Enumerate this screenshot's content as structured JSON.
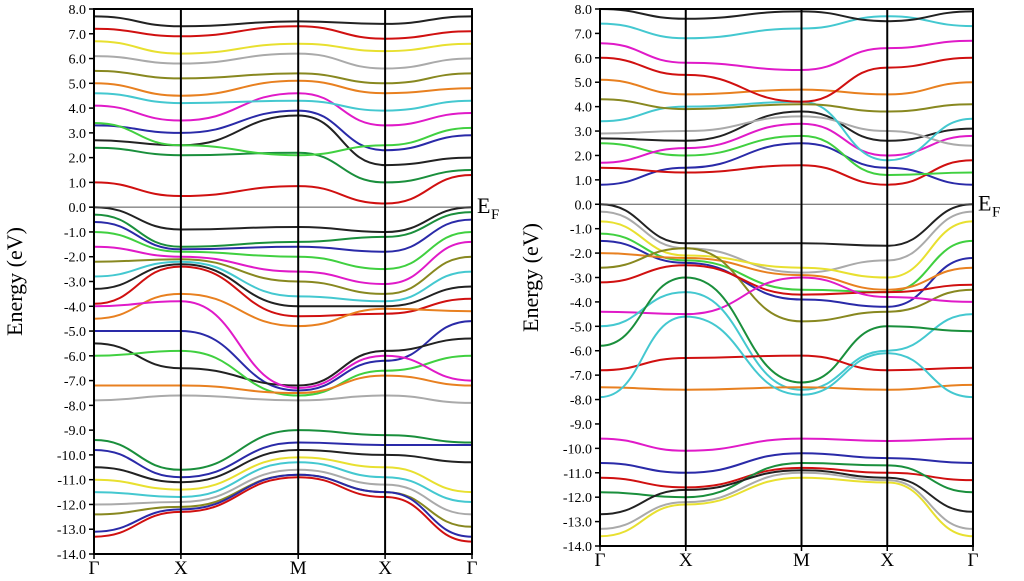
{
  "chart_data": [
    {
      "type": "line",
      "ylabel": "Energy (eV)",
      "ylim": [
        -14.0,
        8.0
      ],
      "y_ticks": [
        "8.0",
        "7.0",
        "6.0",
        "5.0",
        "4.0",
        "3.0",
        "2.0",
        "1.0",
        "0.0",
        "-1.0",
        "-2.0",
        "-3.0",
        "-4.0",
        "-5.0",
        "-6.0",
        "-7.0",
        "-8.0",
        "-9.0",
        "-10.0",
        "-11.0",
        "-12.0",
        "-13.0",
        "-14.0"
      ],
      "k_points": [
        "Γ",
        "X",
        "M",
        "X",
        "Γ"
      ],
      "k_positions": [
        0,
        1,
        2.35,
        3.35,
        4.35
      ],
      "fermi_label": "E",
      "fermi_subscript": "F",
      "fermi_level": 0.0,
      "grid": false,
      "series": [
        {
          "color": "#d01010",
          "values": [
            1.0,
            0.45,
            0.85,
            0.15,
            1.3
          ]
        },
        {
          "color": "#1a8f3c",
          "values": [
            2.4,
            2.1,
            2.2,
            1.0,
            1.5
          ]
        },
        {
          "color": "#222222",
          "values": [
            2.7,
            2.5,
            3.7,
            1.7,
            2.0
          ]
        },
        {
          "color": "#2a2aa8",
          "values": [
            3.3,
            3.0,
            3.9,
            2.3,
            2.9
          ]
        },
        {
          "color": "#40d040",
          "values": [
            3.4,
            2.5,
            2.1,
            2.5,
            3.2
          ]
        },
        {
          "color": "#e01ac8",
          "values": [
            4.1,
            3.5,
            4.6,
            3.3,
            3.8
          ]
        },
        {
          "color": "#44c8d0",
          "values": [
            4.6,
            4.2,
            4.3,
            3.9,
            4.3
          ]
        },
        {
          "color": "#e88020",
          "values": [
            5.0,
            4.5,
            5.1,
            4.6,
            4.8
          ]
        },
        {
          "color": "#888820",
          "values": [
            5.5,
            5.2,
            5.4,
            5.0,
            5.4
          ]
        },
        {
          "color": "#aaaaaa",
          "values": [
            6.1,
            5.8,
            6.2,
            5.6,
            6.0
          ]
        },
        {
          "color": "#e8e030",
          "values": [
            6.7,
            6.2,
            6.6,
            6.3,
            6.6
          ]
        },
        {
          "color": "#d01010",
          "values": [
            7.2,
            6.9,
            7.3,
            6.8,
            7.1
          ]
        },
        {
          "color": "#222222",
          "values": [
            7.7,
            7.3,
            7.5,
            7.4,
            7.7
          ]
        },
        {
          "color": "#222222",
          "values": [
            0.0,
            -0.9,
            -0.8,
            -1.0,
            0.0
          ]
        },
        {
          "color": "#1a8f3c",
          "values": [
            -0.3,
            -1.6,
            -1.4,
            -1.2,
            -0.2
          ]
        },
        {
          "color": "#2a2aa8",
          "values": [
            -0.6,
            -1.7,
            -1.6,
            -1.8,
            -0.5
          ]
        },
        {
          "color": "#40d040",
          "values": [
            -1.0,
            -1.8,
            -2.0,
            -2.5,
            -1.0
          ]
        },
        {
          "color": "#e01ac8",
          "values": [
            -1.6,
            -2.0,
            -2.6,
            -3.1,
            -1.4
          ]
        },
        {
          "color": "#888820",
          "values": [
            -2.2,
            -2.1,
            -3.0,
            -3.5,
            -2.0
          ]
        },
        {
          "color": "#44c8d0",
          "values": [
            -2.8,
            -2.2,
            -3.6,
            -3.8,
            -2.6
          ]
        },
        {
          "color": "#222222",
          "values": [
            -3.3,
            -2.3,
            -4.0,
            -4.0,
            -3.2
          ]
        },
        {
          "color": "#d01010",
          "values": [
            -3.9,
            -2.4,
            -4.4,
            -4.3,
            -3.7
          ]
        },
        {
          "color": "#e88020",
          "values": [
            -4.5,
            -3.5,
            -4.8,
            -4.1,
            -4.2
          ]
        },
        {
          "color": "#2a2aa8",
          "values": [
            -5.0,
            -5.0,
            -7.4,
            -6.2,
            -4.6
          ]
        },
        {
          "color": "#222222",
          "values": [
            -5.5,
            -6.5,
            -7.2,
            -5.8,
            -5.3
          ]
        },
        {
          "color": "#40d040",
          "values": [
            -6.0,
            -5.8,
            -7.6,
            -6.6,
            -6.0
          ]
        },
        {
          "color": "#e01ac8",
          "values": [
            -4.0,
            -3.8,
            -7.3,
            -6.0,
            -7.0
          ]
        },
        {
          "color": "#e88020",
          "values": [
            -7.2,
            -7.2,
            -7.5,
            -6.8,
            -7.2
          ]
        },
        {
          "color": "#aaaaaa",
          "values": [
            -7.8,
            -7.6,
            -7.8,
            -7.6,
            -7.9
          ]
        },
        {
          "color": "#1a8f3c",
          "values": [
            -9.4,
            -10.6,
            -9.0,
            -9.2,
            -9.5
          ]
        },
        {
          "color": "#2a2aa8",
          "values": [
            -9.8,
            -10.9,
            -9.5,
            -9.6,
            -9.6
          ]
        },
        {
          "color": "#222222",
          "values": [
            -10.5,
            -11.1,
            -9.8,
            -10.0,
            -10.3
          ]
        },
        {
          "color": "#e8e030",
          "values": [
            -11.0,
            -11.4,
            -10.1,
            -10.5,
            -11.5
          ]
        },
        {
          "color": "#44c8d0",
          "values": [
            -11.5,
            -11.7,
            -10.3,
            -10.9,
            -11.9
          ]
        },
        {
          "color": "#aaaaaa",
          "values": [
            -12.0,
            -11.9,
            -10.6,
            -11.2,
            -12.4
          ]
        },
        {
          "color": "#888820",
          "values": [
            -12.4,
            -12.1,
            -10.8,
            -11.5,
            -12.9
          ]
        },
        {
          "color": "#2a2aa8",
          "values": [
            -13.1,
            -12.2,
            -10.8,
            -11.5,
            -13.3
          ]
        },
        {
          "color": "#d01010",
          "values": [
            -13.3,
            -12.3,
            -10.9,
            -11.7,
            -13.5
          ]
        }
      ]
    },
    {
      "type": "line",
      "ylabel": "Energy (eV)",
      "ylim": [
        -14.0,
        8.0
      ],
      "y_ticks": [
        "8.0",
        "7.0",
        "6.0",
        "5.0",
        "4.0",
        "3.0",
        "2.0",
        "1.0",
        "0.0",
        "-1.0",
        "-2.0",
        "-3.0",
        "-4.0",
        "-5.0",
        "-6.0",
        "-7.0",
        "-8.0",
        "-9.0",
        "-10.0",
        "-11.0",
        "-12.0",
        "-13.0",
        "-14.0"
      ],
      "k_points": [
        "Γ",
        "X",
        "M",
        "X",
        "Γ"
      ],
      "k_positions": [
        0,
        1,
        2.35,
        3.35,
        4.35
      ],
      "fermi_label": "E",
      "fermi_subscript": "F",
      "fermi_level": 0.0,
      "grid": false,
      "series": [
        {
          "color": "#2a2aa8",
          "values": [
            0.8,
            1.5,
            2.5,
            1.5,
            0.8
          ]
        },
        {
          "color": "#d01010",
          "values": [
            1.5,
            1.3,
            1.6,
            0.8,
            1.8
          ]
        },
        {
          "color": "#40d040",
          "values": [
            2.5,
            2.0,
            2.8,
            1.2,
            1.3
          ]
        },
        {
          "color": "#e01ac8",
          "values": [
            1.7,
            2.3,
            3.3,
            2.0,
            2.8
          ]
        },
        {
          "color": "#222222",
          "values": [
            2.7,
            2.6,
            3.8,
            2.6,
            3.1
          ]
        },
        {
          "color": "#aaaaaa",
          "values": [
            2.9,
            3.0,
            3.6,
            3.0,
            2.4
          ]
        },
        {
          "color": "#44c8d0",
          "values": [
            3.4,
            4.0,
            4.2,
            1.8,
            3.5
          ]
        },
        {
          "color": "#888820",
          "values": [
            4.3,
            3.9,
            4.1,
            3.8,
            4.1
          ]
        },
        {
          "color": "#e88020",
          "values": [
            5.1,
            4.5,
            4.7,
            4.5,
            5.0
          ]
        },
        {
          "color": "#d01010",
          "values": [
            6.0,
            5.3,
            4.2,
            5.6,
            6.0
          ]
        },
        {
          "color": "#e01ac8",
          "values": [
            6.6,
            5.8,
            5.5,
            6.4,
            6.7
          ]
        },
        {
          "color": "#44c8d0",
          "values": [
            7.4,
            6.8,
            7.2,
            7.7,
            7.3
          ]
        },
        {
          "color": "#222222",
          "values": [
            8.0,
            7.6,
            7.9,
            7.5,
            7.9
          ]
        },
        {
          "color": "#222222",
          "values": [
            0.0,
            -1.6,
            -1.6,
            -1.7,
            0.0
          ]
        },
        {
          "color": "#aaaaaa",
          "values": [
            -0.3,
            -1.8,
            -2.8,
            -2.3,
            -0.3
          ]
        },
        {
          "color": "#e8e030",
          "values": [
            -0.7,
            -2.1,
            -2.6,
            -3.0,
            -0.7
          ]
        },
        {
          "color": "#40d040",
          "values": [
            -1.2,
            -2.3,
            -3.5,
            -3.6,
            -1.5
          ]
        },
        {
          "color": "#2a2aa8",
          "values": [
            -1.5,
            -2.4,
            -3.9,
            -4.2,
            -2.2
          ]
        },
        {
          "color": "#e88020",
          "values": [
            -2.0,
            -2.2,
            -2.9,
            -3.5,
            -2.6
          ]
        },
        {
          "color": "#888820",
          "values": [
            -2.6,
            -1.8,
            -4.8,
            -4.4,
            -3.5
          ]
        },
        {
          "color": "#d01010",
          "values": [
            -3.2,
            -2.5,
            -3.7,
            -3.6,
            -3.3
          ]
        },
        {
          "color": "#e01ac8",
          "values": [
            -4.4,
            -4.5,
            -3.0,
            -3.8,
            -4.0
          ]
        },
        {
          "color": "#44c8d0",
          "values": [
            -5.0,
            -3.6,
            -7.6,
            -6.0,
            -4.5
          ]
        },
        {
          "color": "#1a8f3c",
          "values": [
            -5.8,
            -3.0,
            -7.3,
            -5.0,
            -5.2
          ]
        },
        {
          "color": "#d01010",
          "values": [
            -6.8,
            -6.3,
            -6.2,
            -6.8,
            -6.7
          ]
        },
        {
          "color": "#e88020",
          "values": [
            -7.5,
            -7.6,
            -7.5,
            -7.6,
            -7.4
          ]
        },
        {
          "color": "#44c8d0",
          "values": [
            -7.9,
            -4.6,
            -7.8,
            -6.1,
            -7.9
          ]
        },
        {
          "color": "#e01ac8",
          "values": [
            -9.6,
            -10.1,
            -9.6,
            -9.7,
            -9.6
          ]
        },
        {
          "color": "#2a2aa8",
          "values": [
            -10.6,
            -11.0,
            -10.2,
            -10.4,
            -10.6
          ]
        },
        {
          "color": "#d01010",
          "values": [
            -11.2,
            -11.6,
            -10.8,
            -11.0,
            -11.3
          ]
        },
        {
          "color": "#1a8f3c",
          "values": [
            -11.8,
            -12.0,
            -10.6,
            -10.7,
            -11.8
          ]
        },
        {
          "color": "#222222",
          "values": [
            -12.7,
            -11.7,
            -10.9,
            -11.2,
            -12.6
          ]
        },
        {
          "color": "#aaaaaa",
          "values": [
            -13.3,
            -12.2,
            -11.0,
            -11.3,
            -13.3
          ]
        },
        {
          "color": "#e8e030",
          "values": [
            -13.6,
            -12.3,
            -11.2,
            -11.4,
            -13.6
          ]
        }
      ]
    }
  ]
}
